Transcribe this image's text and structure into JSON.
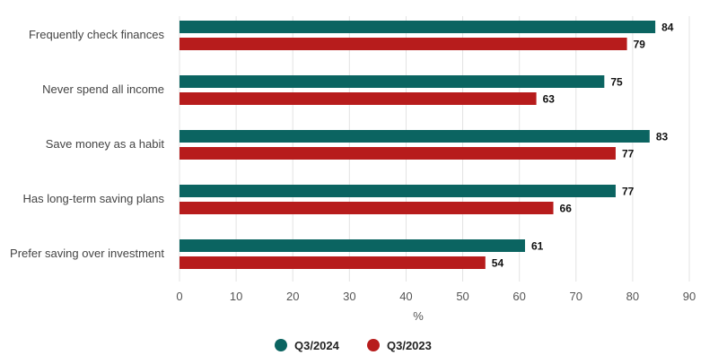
{
  "chart_data": {
    "type": "bar",
    "orientation": "horizontal",
    "categories": [
      "Frequently check finances",
      "Never spend all income",
      "Save money as a habit",
      "Has long-term saving plans",
      "Prefer saving over investment"
    ],
    "series": [
      {
        "name": "Q3/2024",
        "color": "#0b6461",
        "values": [
          84,
          75,
          83,
          77,
          61
        ]
      },
      {
        "name": "Q3/2023",
        "color": "#b71c1c",
        "values": [
          79,
          63,
          77,
          66,
          54
        ]
      }
    ],
    "xlabel": "%",
    "ylabel": "",
    "xlim": [
      0,
      90
    ],
    "xticks": [
      0,
      10,
      20,
      30,
      40,
      50,
      60,
      70,
      80,
      90
    ],
    "grid": true,
    "data_labels": true,
    "legend_position": "bottom-center"
  }
}
